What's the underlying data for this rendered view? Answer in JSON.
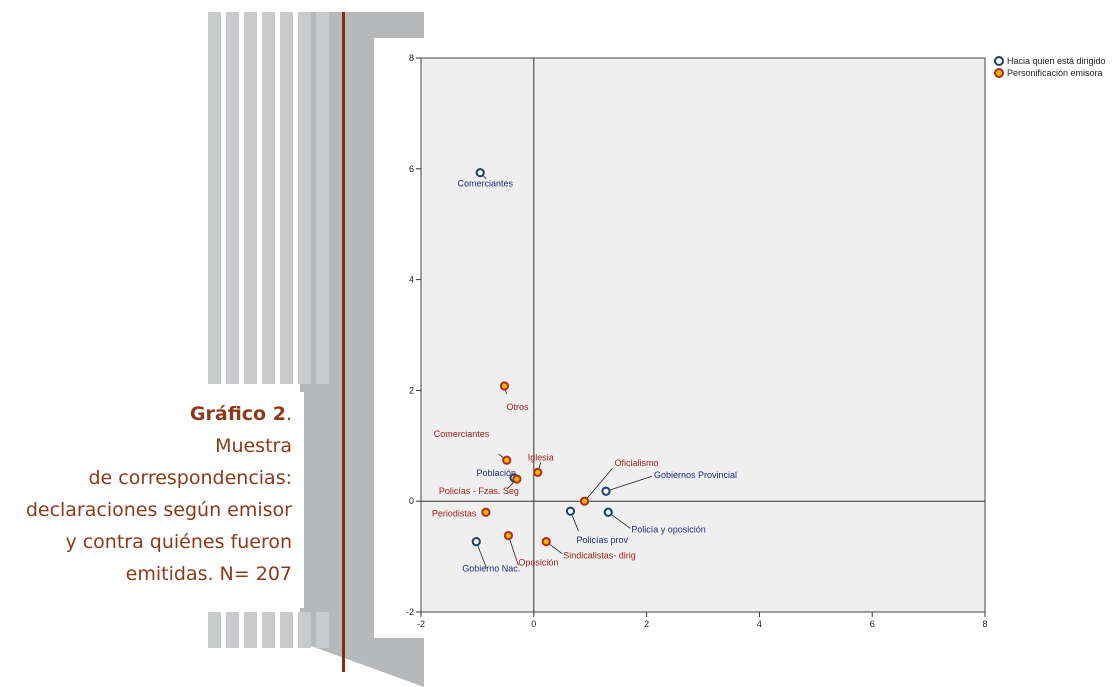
{
  "caption": {
    "title_bold": "Gráfico 2",
    "title_rest": ".",
    "lines": [
      "Muestra",
      "de correspondencias:",
      "declaraciones según emisor",
      "y contra quiénes fueron",
      "emitidas. N= 207"
    ]
  },
  "colors": {
    "caption_text": "#8b3a1c",
    "series_blue_edge": "#1f3d6b",
    "series_blue_fill": "#ffffff",
    "series_orange_edge": "#b22a1e",
    "series_orange_fill": "#f5b800",
    "blue_label": "#1f2a7a",
    "red_label": "#a0201a",
    "plot_bg": "#efefef",
    "decor_stripes": "#c9cacc",
    "decor_line": "#8b2a10"
  },
  "chart_data": {
    "type": "scatter",
    "title": "",
    "xlabel": "",
    "ylabel": "",
    "xlim": [
      -2,
      8
    ],
    "ylim": [
      -2,
      8
    ],
    "x_ticks": [
      -2,
      0,
      2,
      4,
      6,
      8
    ],
    "y_ticks": [
      -2,
      0,
      2,
      4,
      6,
      8
    ],
    "reference_lines": {
      "x": 0,
      "y": 0
    },
    "grid": false,
    "legend_position": "top-right",
    "series": [
      {
        "name": "Hacia quien está dirigido",
        "marker": "blue",
        "points": [
          {
            "label": "Comerciantes",
            "x": -0.95,
            "y": 5.93
          },
          {
            "label": "Población",
            "x": -0.35,
            "y": 0.42
          },
          {
            "label": "Gobiernos Provincial",
            "x": 1.28,
            "y": 0.18
          },
          {
            "label": "Policías prov",
            "x": 0.65,
            "y": -0.18
          },
          {
            "label": "Policía y oposición",
            "x": 1.32,
            "y": -0.2
          },
          {
            "label": "Gobierno Nac.",
            "x": -1.02,
            "y": -0.73
          }
        ]
      },
      {
        "name": "Personificación emisora",
        "marker": "orange",
        "points": [
          {
            "label": "Otros",
            "x": -0.52,
            "y": 2.08
          },
          {
            "label": "Comerciantes",
            "x": -0.48,
            "y": 0.74
          },
          {
            "label": "Iglesia",
            "x": 0.07,
            "y": 0.52
          },
          {
            "label": "Policías - Fzas. Seg",
            "x": -0.3,
            "y": 0.4
          },
          {
            "label": "Oficialismo",
            "x": 0.9,
            "y": 0.0
          },
          {
            "label": "Periodistas",
            "x": -0.85,
            "y": -0.2
          },
          {
            "label": "Oposición",
            "x": -0.45,
            "y": -0.62
          },
          {
            "label": "Sindicalistas- dirig",
            "x": 0.22,
            "y": -0.73
          }
        ]
      }
    ]
  }
}
